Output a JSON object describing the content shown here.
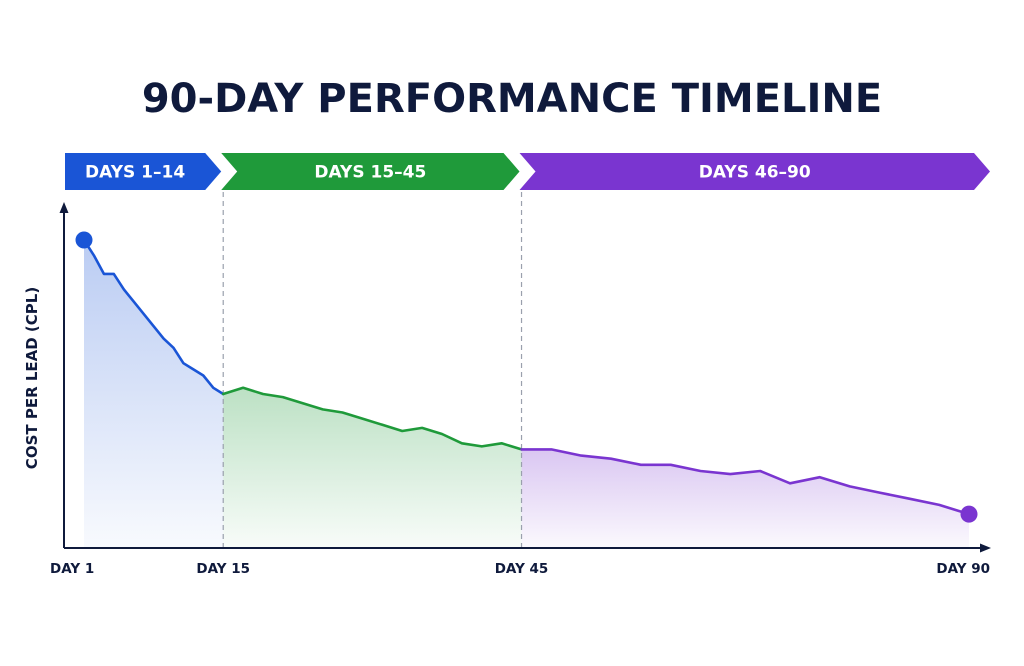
{
  "chart_data": {
    "type": "area",
    "title": "90-DAY PERFORMANCE TIMELINE",
    "ylabel": "COST PER LEAD (CPL)",
    "xlabel": "",
    "xlim": [
      1,
      90
    ],
    "ylim": [
      0,
      100
    ],
    "grid": false,
    "x_ticks": [
      {
        "day": 1,
        "label": "DAY 1"
      },
      {
        "day": 15,
        "label": "DAY 15"
      },
      {
        "day": 45,
        "label": "DAY 45"
      },
      {
        "day": 90,
        "label": "DAY 90"
      }
    ],
    "phases": [
      {
        "label": "DAYS 1–14",
        "start": 1,
        "end": 15,
        "color": "#1a55d6"
      },
      {
        "label": "DAYS 15–45",
        "start": 15,
        "end": 45,
        "color": "#1f9a3a"
      },
      {
        "label": "DAYS 46–90",
        "start": 45,
        "end": 90,
        "color": "#7a35d0"
      }
    ],
    "series": [
      {
        "color": "#1a55d6",
        "x": [
          1,
          2,
          3,
          4,
          5,
          6,
          7,
          8,
          9,
          10,
          11,
          12,
          13,
          14,
          15
        ],
        "values": [
          100,
          95,
          89,
          89,
          84,
          80,
          76,
          72,
          68,
          65,
          60,
          58,
          56,
          52,
          50
        ]
      },
      {
        "color": "#1f9a3a",
        "x": [
          15,
          17,
          19,
          21,
          23,
          25,
          27,
          29,
          31,
          33,
          35,
          37,
          39,
          41,
          43,
          45
        ],
        "values": [
          50,
          52,
          50,
          49,
          47,
          45,
          44,
          42,
          40,
          38,
          39,
          37,
          34,
          33,
          34,
          32
        ]
      },
      {
        "color": "#7a35d0",
        "x": [
          45,
          48,
          51,
          54,
          57,
          60,
          63,
          66,
          69,
          72,
          75,
          78,
          81,
          84,
          87,
          90
        ],
        "values": [
          32,
          32,
          30,
          29,
          27,
          27,
          25,
          24,
          25,
          21,
          23,
          20,
          18,
          16,
          14,
          11
        ]
      }
    ]
  }
}
